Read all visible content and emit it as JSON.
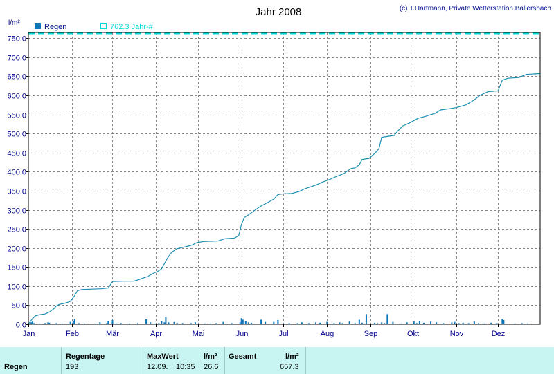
{
  "chart_data": {
    "type": "bar+line",
    "title": "Jahr 2008",
    "credit": "(c) T.Hartmann, Private Wetterstation Ballersbach",
    "ylabel": "l/m²",
    "ylim": [
      0,
      765
    ],
    "yticks": [
      "0.0",
      "50.0",
      "100.0",
      "150.0",
      "200.0",
      "250.0",
      "300.0",
      "350.0",
      "400.0",
      "450.0",
      "500.0",
      "550.0",
      "600.0",
      "650.0",
      "700.0",
      "750.0"
    ],
    "ytick_values": [
      0,
      50,
      100,
      150,
      200,
      250,
      300,
      350,
      400,
      450,
      500,
      550,
      600,
      650,
      700,
      750
    ],
    "xlim": [
      0,
      365
    ],
    "month_labels": [
      "Jan",
      "Feb",
      "Mär",
      "Apr",
      "Mai",
      "Jun",
      "Jul",
      "Aug",
      "Sep",
      "Okt",
      "Nov",
      "Dez"
    ],
    "month_starts": [
      0,
      31,
      60,
      91,
      121,
      152,
      182,
      213,
      244,
      274,
      305,
      335
    ],
    "grid": true,
    "legend": [
      {
        "name": "Regen",
        "style": "bar"
      },
      {
        "name": "762.3 Jahr-#",
        "style": "reference"
      }
    ],
    "reference_value": 762.3,
    "cumulative": [
      [
        0,
        0
      ],
      [
        3,
        15
      ],
      [
        5,
        22
      ],
      [
        8,
        25
      ],
      [
        12,
        27
      ],
      [
        15,
        32
      ],
      [
        18,
        40
      ],
      [
        20,
        48
      ],
      [
        22,
        52
      ],
      [
        26,
        55
      ],
      [
        30,
        60
      ],
      [
        33,
        75
      ],
      [
        35,
        88
      ],
      [
        38,
        91
      ],
      [
        45,
        92
      ],
      [
        52,
        93
      ],
      [
        57,
        95
      ],
      [
        60,
        112
      ],
      [
        68,
        113
      ],
      [
        75,
        113
      ],
      [
        78,
        116
      ],
      [
        85,
        125
      ],
      [
        90,
        135
      ],
      [
        92,
        138
      ],
      [
        95,
        145
      ],
      [
        99,
        172
      ],
      [
        102,
        188
      ],
      [
        106,
        198
      ],
      [
        112,
        203
      ],
      [
        117,
        208
      ],
      [
        120,
        214
      ],
      [
        125,
        217
      ],
      [
        135,
        218
      ],
      [
        140,
        224
      ],
      [
        147,
        226
      ],
      [
        150,
        232
      ],
      [
        152,
        262
      ],
      [
        154,
        280
      ],
      [
        157,
        287
      ],
      [
        160,
        295
      ],
      [
        165,
        308
      ],
      [
        170,
        318
      ],
      [
        175,
        328
      ],
      [
        178,
        340
      ],
      [
        182,
        342
      ],
      [
        188,
        343
      ],
      [
        193,
        348
      ],
      [
        197,
        355
      ],
      [
        205,
        365
      ],
      [
        210,
        373
      ],
      [
        215,
        380
      ],
      [
        220,
        388
      ],
      [
        225,
        395
      ],
      [
        230,
        408
      ],
      [
        233,
        410
      ],
      [
        236,
        418
      ],
      [
        238,
        432
      ],
      [
        243,
        435
      ],
      [
        247,
        448
      ],
      [
        250,
        460
      ],
      [
        252,
        490
      ],
      [
        255,
        492
      ],
      [
        261,
        495
      ],
      [
        263,
        505
      ],
      [
        267,
        520
      ],
      [
        272,
        528
      ],
      [
        278,
        540
      ],
      [
        283,
        545
      ],
      [
        290,
        553
      ],
      [
        294,
        562
      ],
      [
        300,
        565
      ],
      [
        305,
        568
      ],
      [
        312,
        575
      ],
      [
        318,
        588
      ],
      [
        322,
        600
      ],
      [
        328,
        610
      ],
      [
        335,
        612
      ],
      [
        338,
        640
      ],
      [
        342,
        645
      ],
      [
        350,
        647
      ],
      [
        355,
        655
      ],
      [
        365,
        657.3
      ]
    ],
    "daily_rain": [
      [
        2,
        5
      ],
      [
        3,
        8
      ],
      [
        4,
        3
      ],
      [
        8,
        2
      ],
      [
        12,
        3
      ],
      [
        14,
        5
      ],
      [
        15,
        4
      ],
      [
        20,
        3
      ],
      [
        24,
        2
      ],
      [
        30,
        6
      ],
      [
        32,
        8
      ],
      [
        33,
        14
      ],
      [
        36,
        3
      ],
      [
        40,
        2
      ],
      [
        48,
        2
      ],
      [
        51,
        5
      ],
      [
        56,
        3
      ],
      [
        57,
        9
      ],
      [
        60,
        11
      ],
      [
        63,
        2
      ],
      [
        66,
        3
      ],
      [
        72,
        2
      ],
      [
        78,
        3
      ],
      [
        84,
        13
      ],
      [
        87,
        5
      ],
      [
        90,
        2
      ],
      [
        93,
        3
      ],
      [
        95,
        9
      ],
      [
        97,
        5
      ],
      [
        98,
        19
      ],
      [
        100,
        5
      ],
      [
        104,
        6
      ],
      [
        106,
        4
      ],
      [
        110,
        3
      ],
      [
        116,
        3
      ],
      [
        119,
        5
      ],
      [
        126,
        2
      ],
      [
        130,
        2
      ],
      [
        134,
        3
      ],
      [
        139,
        6
      ],
      [
        145,
        3
      ],
      [
        151,
        5
      ],
      [
        152,
        16
      ],
      [
        153,
        12
      ],
      [
        155,
        8
      ],
      [
        157,
        5
      ],
      [
        159,
        4
      ],
      [
        166,
        12
      ],
      [
        169,
        6
      ],
      [
        175,
        6
      ],
      [
        178,
        11
      ],
      [
        182,
        2
      ],
      [
        186,
        3
      ],
      [
        192,
        3
      ],
      [
        195,
        5
      ],
      [
        200,
        3
      ],
      [
        205,
        5
      ],
      [
        208,
        4
      ],
      [
        213,
        6
      ],
      [
        218,
        3
      ],
      [
        222,
        5
      ],
      [
        224,
        3
      ],
      [
        229,
        7
      ],
      [
        233,
        3
      ],
      [
        236,
        12
      ],
      [
        238,
        4
      ],
      [
        241,
        26.6
      ],
      [
        247,
        4
      ],
      [
        249,
        3
      ],
      [
        252,
        5
      ],
      [
        254,
        3
      ],
      [
        256,
        26.6
      ],
      [
        260,
        6
      ],
      [
        266,
        2
      ],
      [
        270,
        5
      ],
      [
        275,
        7
      ],
      [
        277,
        3
      ],
      [
        279,
        9
      ],
      [
        282,
        4
      ],
      [
        287,
        7
      ],
      [
        291,
        5
      ],
      [
        296,
        3
      ],
      [
        302,
        5
      ],
      [
        304,
        6
      ],
      [
        307,
        3
      ],
      [
        310,
        4
      ],
      [
        314,
        3
      ],
      [
        318,
        7
      ],
      [
        321,
        3
      ],
      [
        325,
        2
      ],
      [
        330,
        4
      ],
      [
        334,
        3
      ],
      [
        338,
        14
      ],
      [
        339,
        11
      ],
      [
        347,
        2
      ],
      [
        352,
        3
      ],
      [
        356,
        2
      ]
    ]
  },
  "stats": {
    "row_label": "Regen",
    "headers": {
      "days": "Regentage",
      "max": "MaxWert",
      "max_unit": "l/m²",
      "total": "Gesamt",
      "total_unit": "l/m²"
    },
    "values": {
      "days": "193",
      "max_date": "12.09.",
      "max_time": "10:35",
      "max_value": "26.6",
      "total": "657.3"
    }
  },
  "colors": {
    "line": "#1a8fb0",
    "bar": "#0a75b8",
    "reference": "#00d8d8",
    "grid": "#888888",
    "axis_text": "#00008b",
    "legend_text": "#00108c",
    "stats_bg": "#c8f5f2"
  }
}
